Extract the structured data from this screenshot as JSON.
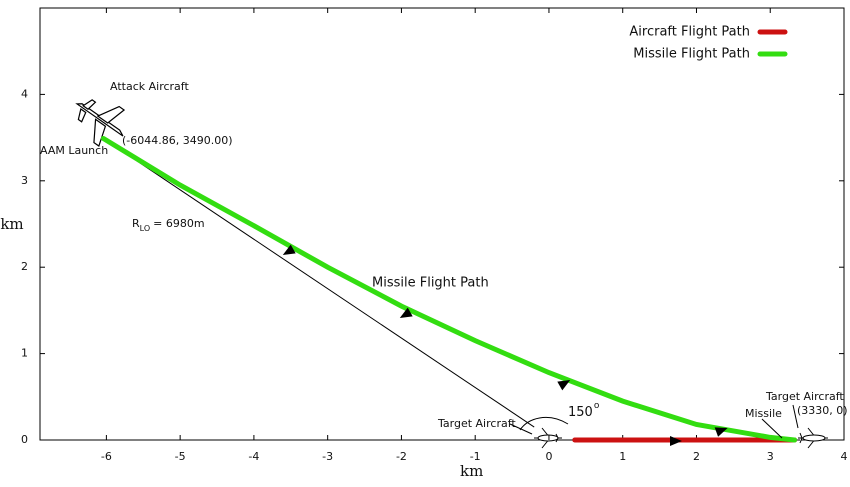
{
  "chart_data": {
    "type": "line",
    "xlabel": "km",
    "ylabel": "km",
    "xlim": [
      -6.9,
      4
    ],
    "ylim": [
      0,
      5
    ],
    "xticks": [
      -6,
      -5,
      -4,
      -3,
      -2,
      -1,
      0,
      1,
      2,
      3,
      4
    ],
    "yticks": [
      0,
      1,
      2,
      3,
      4
    ],
    "legend": "upper right",
    "series": [
      {
        "name": "Aircraft Flight Path",
        "color": "#cc1111",
        "x": [
          0.35,
          3.33
        ],
        "values": [
          0,
          0
        ]
      },
      {
        "name": "Missile Flight Path",
        "color": "#33dd11",
        "x": [
          -6.04,
          -5,
          -4,
          -3,
          -2,
          -1,
          0,
          1,
          2,
          3,
          3.33
        ],
        "values": [
          3.49,
          2.95,
          2.48,
          2.0,
          1.55,
          1.15,
          0.78,
          0.45,
          0.18,
          0.03,
          0
        ]
      }
    ],
    "line_of_sight": {
      "x": [
        -6.04,
        -0.2
      ],
      "values": [
        3.49,
        0.15
      ]
    },
    "annotations": {
      "attack_aircraft": "Attack Aircraft",
      "launch_point": "(-6044.86, 3490.00)",
      "aam_launch": "AAM Launch",
      "range": {
        "symbol": "R",
        "subscript": "LO",
        "text": "= 6980m"
      },
      "missile_path": "Missile Flight Path",
      "target_start": "Target Aircraft",
      "angle": {
        "value": "150",
        "unit": "o"
      },
      "missile": "Missile",
      "target_end": "Target Aircraft",
      "intercept_point": "(3330, 0)"
    }
  }
}
